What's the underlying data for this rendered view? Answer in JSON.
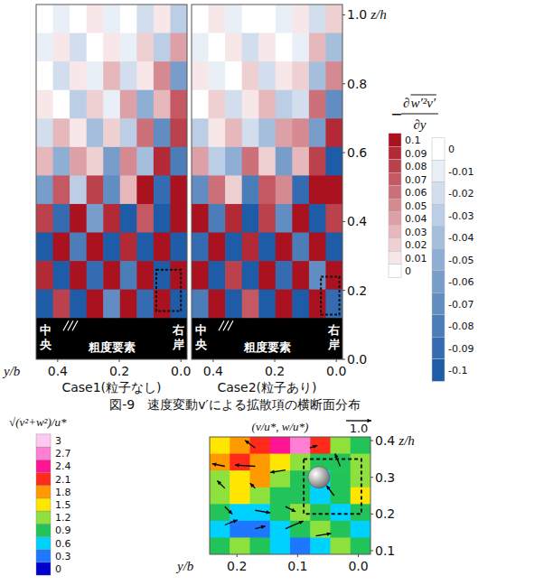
{
  "caption": "図-9　速度変動v′による拡散項の横断面分布",
  "heatmap_colorbar": {
    "label": {
      "sign": "−",
      "operator": "∂",
      "quantity": "w′²v′",
      "denominator": "∂y"
    },
    "positive": {
      "range": [
        0,
        0.1
      ],
      "ticks": [
        0.1,
        0.09,
        0.08,
        0.07,
        0.06,
        0.05,
        0.04,
        0.03,
        0.02,
        0.01,
        0
      ]
    },
    "negative": {
      "range": [
        -0.1,
        0
      ],
      "ticks": [
        0,
        -0.01,
        -0.02,
        -0.03,
        -0.04,
        -0.05,
        -0.06,
        -0.07,
        -0.08,
        -0.09,
        -0.1
      ]
    }
  },
  "chart_data": [
    {
      "type": "heatmap",
      "subtitle": "Case1(粒子なし)",
      "xlabel": "y/b",
      "xlim": [
        0.47,
        -0.02
      ],
      "ylim": [
        0,
        1.03
      ],
      "xticks": [
        0.4,
        0.2,
        {
          "value": 0,
          "label": "0.0"
        }
      ],
      "tick_labels": "x",
      "bed_top": 0.12,
      "bed_labels": [
        "中央",
        "粗度要素",
        "右岸"
      ],
      "highlight": {
        "y": [
          0.08,
          0.0
        ],
        "z": [
          0.14,
          0.26
        ]
      },
      "cells": [
        [
          0,
          -0.01,
          0,
          0.01,
          -0.01,
          0,
          -0.02,
          0.01,
          -0.03
        ],
        [
          -0.01,
          0.01,
          -0.02,
          0,
          0.01,
          -0.01,
          0.02,
          -0.03,
          0.04
        ],
        [
          0,
          -0.02,
          0.01,
          -0.01,
          0.03,
          -0.02,
          0.01,
          0.05,
          -0.06
        ],
        [
          0.01,
          0,
          -0.03,
          0.02,
          -0.01,
          0.04,
          -0.05,
          0.03,
          0.07
        ],
        [
          -0.02,
          0.03,
          0.01,
          -0.04,
          0.02,
          -0.03,
          0.06,
          -0.07,
          0.08
        ],
        [
          0.03,
          -0.05,
          0.04,
          0.02,
          -0.06,
          0.05,
          -0.04,
          0.09,
          -0.08
        ],
        [
          -0.06,
          0.07,
          -0.03,
          0.08,
          -0.07,
          0.03,
          0.1,
          -0.09,
          0.1
        ],
        [
          0.08,
          -0.09,
          0.1,
          -0.06,
          0.09,
          -0.1,
          0.07,
          -0.1,
          0.1
        ],
        [
          -0.1,
          0.1,
          -0.08,
          0.1,
          -0.1,
          0.09,
          -0.1,
          0.1,
          -0.1
        ],
        [
          0.09,
          -0.1,
          0.1,
          -0.09,
          0.1,
          -0.08,
          0.1,
          -0.1,
          0.1
        ],
        [
          -0.1,
          0.08,
          -0.1,
          0.1,
          -0.07,
          0.1,
          -0.09,
          0.1,
          -0.1
        ]
      ]
    },
    {
      "type": "heatmap",
      "subtitle": "Case2(粒子あり)",
      "ylabel": "z/h",
      "xlim": [
        0.47,
        -0.02
      ],
      "ylim": [
        0,
        1.03
      ],
      "xticks": [
        0.4,
        0.2,
        {
          "value": 0,
          "label": "0.0"
        }
      ],
      "yticks": [
        {
          "value": 0,
          "label": "0.0"
        },
        0.2,
        0.4,
        0.6,
        0.8,
        {
          "value": 1,
          "label": "1.0"
        }
      ],
      "bed_top": 0.12,
      "bed_labels": [
        "中央",
        "粗度要素",
        "右岸"
      ],
      "highlight": {
        "y": [
          0.05,
          -0.01
        ],
        "z": [
          0.13,
          0.24
        ]
      },
      "cells": [
        [
          0,
          0.01,
          -0.01,
          0,
          0,
          -0.01,
          0.01,
          -0.02,
          0.02
        ],
        [
          -0.01,
          0,
          0.01,
          -0.02,
          0.01,
          0,
          -0.01,
          0.03,
          -0.04
        ],
        [
          0.01,
          -0.01,
          0,
          0.02,
          -0.02,
          0.01,
          0.02,
          -0.04,
          0.05
        ],
        [
          0,
          0.02,
          -0.02,
          0.01,
          0.03,
          -0.03,
          -0.02,
          0.06,
          -0.07
        ],
        [
          -0.03,
          0.01,
          0.03,
          -0.02,
          -0.04,
          0.04,
          0.05,
          -0.06,
          0.09
        ],
        [
          0.04,
          -0.03,
          -0.05,
          0.06,
          0.02,
          -0.06,
          0.03,
          0.08,
          -0.1
        ],
        [
          -0.07,
          0.06,
          0.02,
          -0.08,
          0.07,
          0.05,
          -0.09,
          0.1,
          0.1
        ],
        [
          0.1,
          -0.08,
          0.09,
          -0.1,
          0.08,
          -0.07,
          0.1,
          -0.1,
          0.08
        ],
        [
          -0.09,
          0.1,
          -0.1,
          0.09,
          -0.1,
          0.1,
          -0.08,
          0.1,
          -0.1
        ],
        [
          0.1,
          -0.1,
          0.08,
          -0.1,
          0.1,
          -0.09,
          0.1,
          -0.07,
          0.1
        ],
        [
          -0.08,
          0.1,
          -0.1,
          0.07,
          -0.1,
          0.1,
          -0.1,
          0.1,
          -0.09
        ]
      ]
    },
    {
      "type": "vector",
      "title": "(v/u*, w/u*)",
      "xlabel": "y/b",
      "ylabel": "z/h",
      "xlim": [
        0.245,
        -0.02
      ],
      "ylim": [
        0.09,
        0.41
      ],
      "xticks": [
        0.2,
        0.1,
        {
          "value": 0,
          "label": "0.0"
        }
      ],
      "yticks": [
        0.1,
        0.2,
        0.3,
        0.4
      ],
      "reference_vector": {
        "value": 1,
        "label": "1.0"
      },
      "particle": {
        "y": 0.065,
        "z": 0.3
      },
      "highlight": {
        "y": [
          0.09,
          -0.005
        ],
        "z": [
          0.2,
          0.35
        ]
      },
      "colorbar": {
        "label": "√(v²+w²)/u*",
        "range": [
          0,
          3
        ],
        "ticks": [
          0,
          0.3,
          0.6,
          0.9,
          1.2,
          1.5,
          1.8,
          2.1,
          2.4,
          2.7,
          3
        ],
        "colors": [
          "#0000cd",
          "#1e78ff",
          "#00d2ff",
          "#22c45a",
          "#8ee03c",
          "#ffe600",
          "#ff9900",
          "#ff2a1a",
          "#ff1493",
          "#ff7fd4",
          "#ffc8f0"
        ]
      },
      "cells": [
        [
          1.5,
          1.8,
          2.1,
          2.4,
          2.7,
          2.1,
          1.2,
          0.9
        ],
        [
          1.8,
          2.1,
          1.8,
          1.5,
          1.2,
          0.9,
          0.9,
          1.2
        ],
        [
          1.2,
          1.5,
          1.8,
          1.2,
          0.9,
          0.6,
          0.9,
          1.2
        ],
        [
          1.2,
          1.5,
          1.2,
          0.9,
          0.9,
          0.6,
          0.9,
          1.5
        ],
        [
          0.9,
          0.6,
          0.6,
          0.9,
          1.2,
          0.9,
          0.6,
          0.9
        ],
        [
          0.6,
          0.3,
          0.3,
          0.6,
          0.9,
          1.2,
          0.9,
          0.6
        ],
        [
          0.9,
          1.2,
          0.9,
          0.6,
          0.3,
          0.6,
          1.2,
          0.9
        ]
      ],
      "vectors": {
        "y": [
          0.22,
          0.17,
          0.12,
          0.22,
          0.17,
          0.22,
          0.17,
          0.12,
          0.22,
          0.17,
          0.12,
          0.07,
          0.04,
          0.03,
          0.17,
          0.08
        ],
        "z": [
          0.33,
          0.33,
          0.32,
          0.27,
          0.27,
          0.22,
          0.21,
          0.22,
          0.17,
          0.16,
          0.16,
          0.14,
          0.25,
          0.33,
          0.38,
          0.38
        ],
        "v": [
          -0.5,
          -0.8,
          -0.6,
          -0.3,
          -0.2,
          0.3,
          0.6,
          0.4,
          0.5,
          0.4,
          0.7,
          0.6,
          -0.3,
          -0.2,
          -0.4,
          0.3
        ],
        "w": [
          0.1,
          0.05,
          -0.1,
          0.3,
          0.2,
          -0.3,
          -0.1,
          -0.2,
          0.2,
          0.1,
          0.3,
          0.1,
          0.4,
          0.5,
          0.3,
          0.1
        ]
      }
    }
  ]
}
